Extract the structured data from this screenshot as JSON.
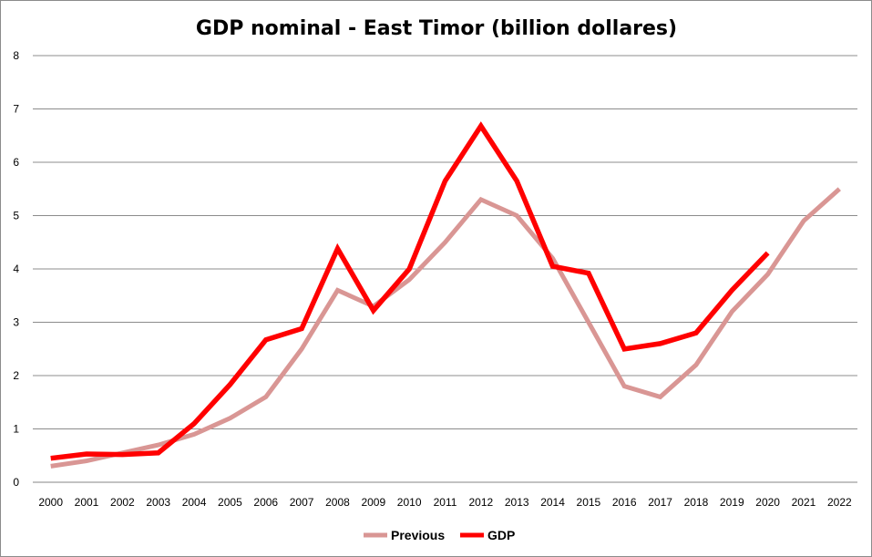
{
  "chart_data": {
    "type": "line",
    "title": "GDP nominal - East Timor (billion dollares)",
    "xlabel": "",
    "ylabel": "",
    "ylim": [
      0,
      8
    ],
    "yticks": [
      "0",
      "1",
      "2",
      "3",
      "4",
      "5",
      "6",
      "7",
      "8"
    ],
    "categories": [
      "2000",
      "2001",
      "2002",
      "2003",
      "2004",
      "2005",
      "2006",
      "2007",
      "2008",
      "2009",
      "2010",
      "2011",
      "2012",
      "2013",
      "2014",
      "2015",
      "2016",
      "2017",
      "2018",
      "2019",
      "2020",
      "2021",
      "2022"
    ],
    "grid": true,
    "legend_position": "bottom-center",
    "series": [
      {
        "name": "Previous",
        "color": "#d99694",
        "values": [
          0.3,
          0.4,
          0.55,
          0.7,
          0.9,
          1.2,
          1.6,
          2.5,
          3.6,
          3.3,
          3.8,
          4.5,
          5.3,
          5.0,
          4.2,
          3.0,
          1.8,
          1.6,
          2.2,
          3.2,
          3.9,
          4.9,
          5.5
        ]
      },
      {
        "name": "GDP",
        "color": "#ff0000",
        "values": [
          0.45,
          0.53,
          0.52,
          0.55,
          1.1,
          1.83,
          2.67,
          2.88,
          4.38,
          3.22,
          4.0,
          5.65,
          6.68,
          5.65,
          4.05,
          3.92,
          2.5,
          2.6,
          2.8,
          3.6,
          4.3,
          null,
          null
        ]
      }
    ]
  }
}
